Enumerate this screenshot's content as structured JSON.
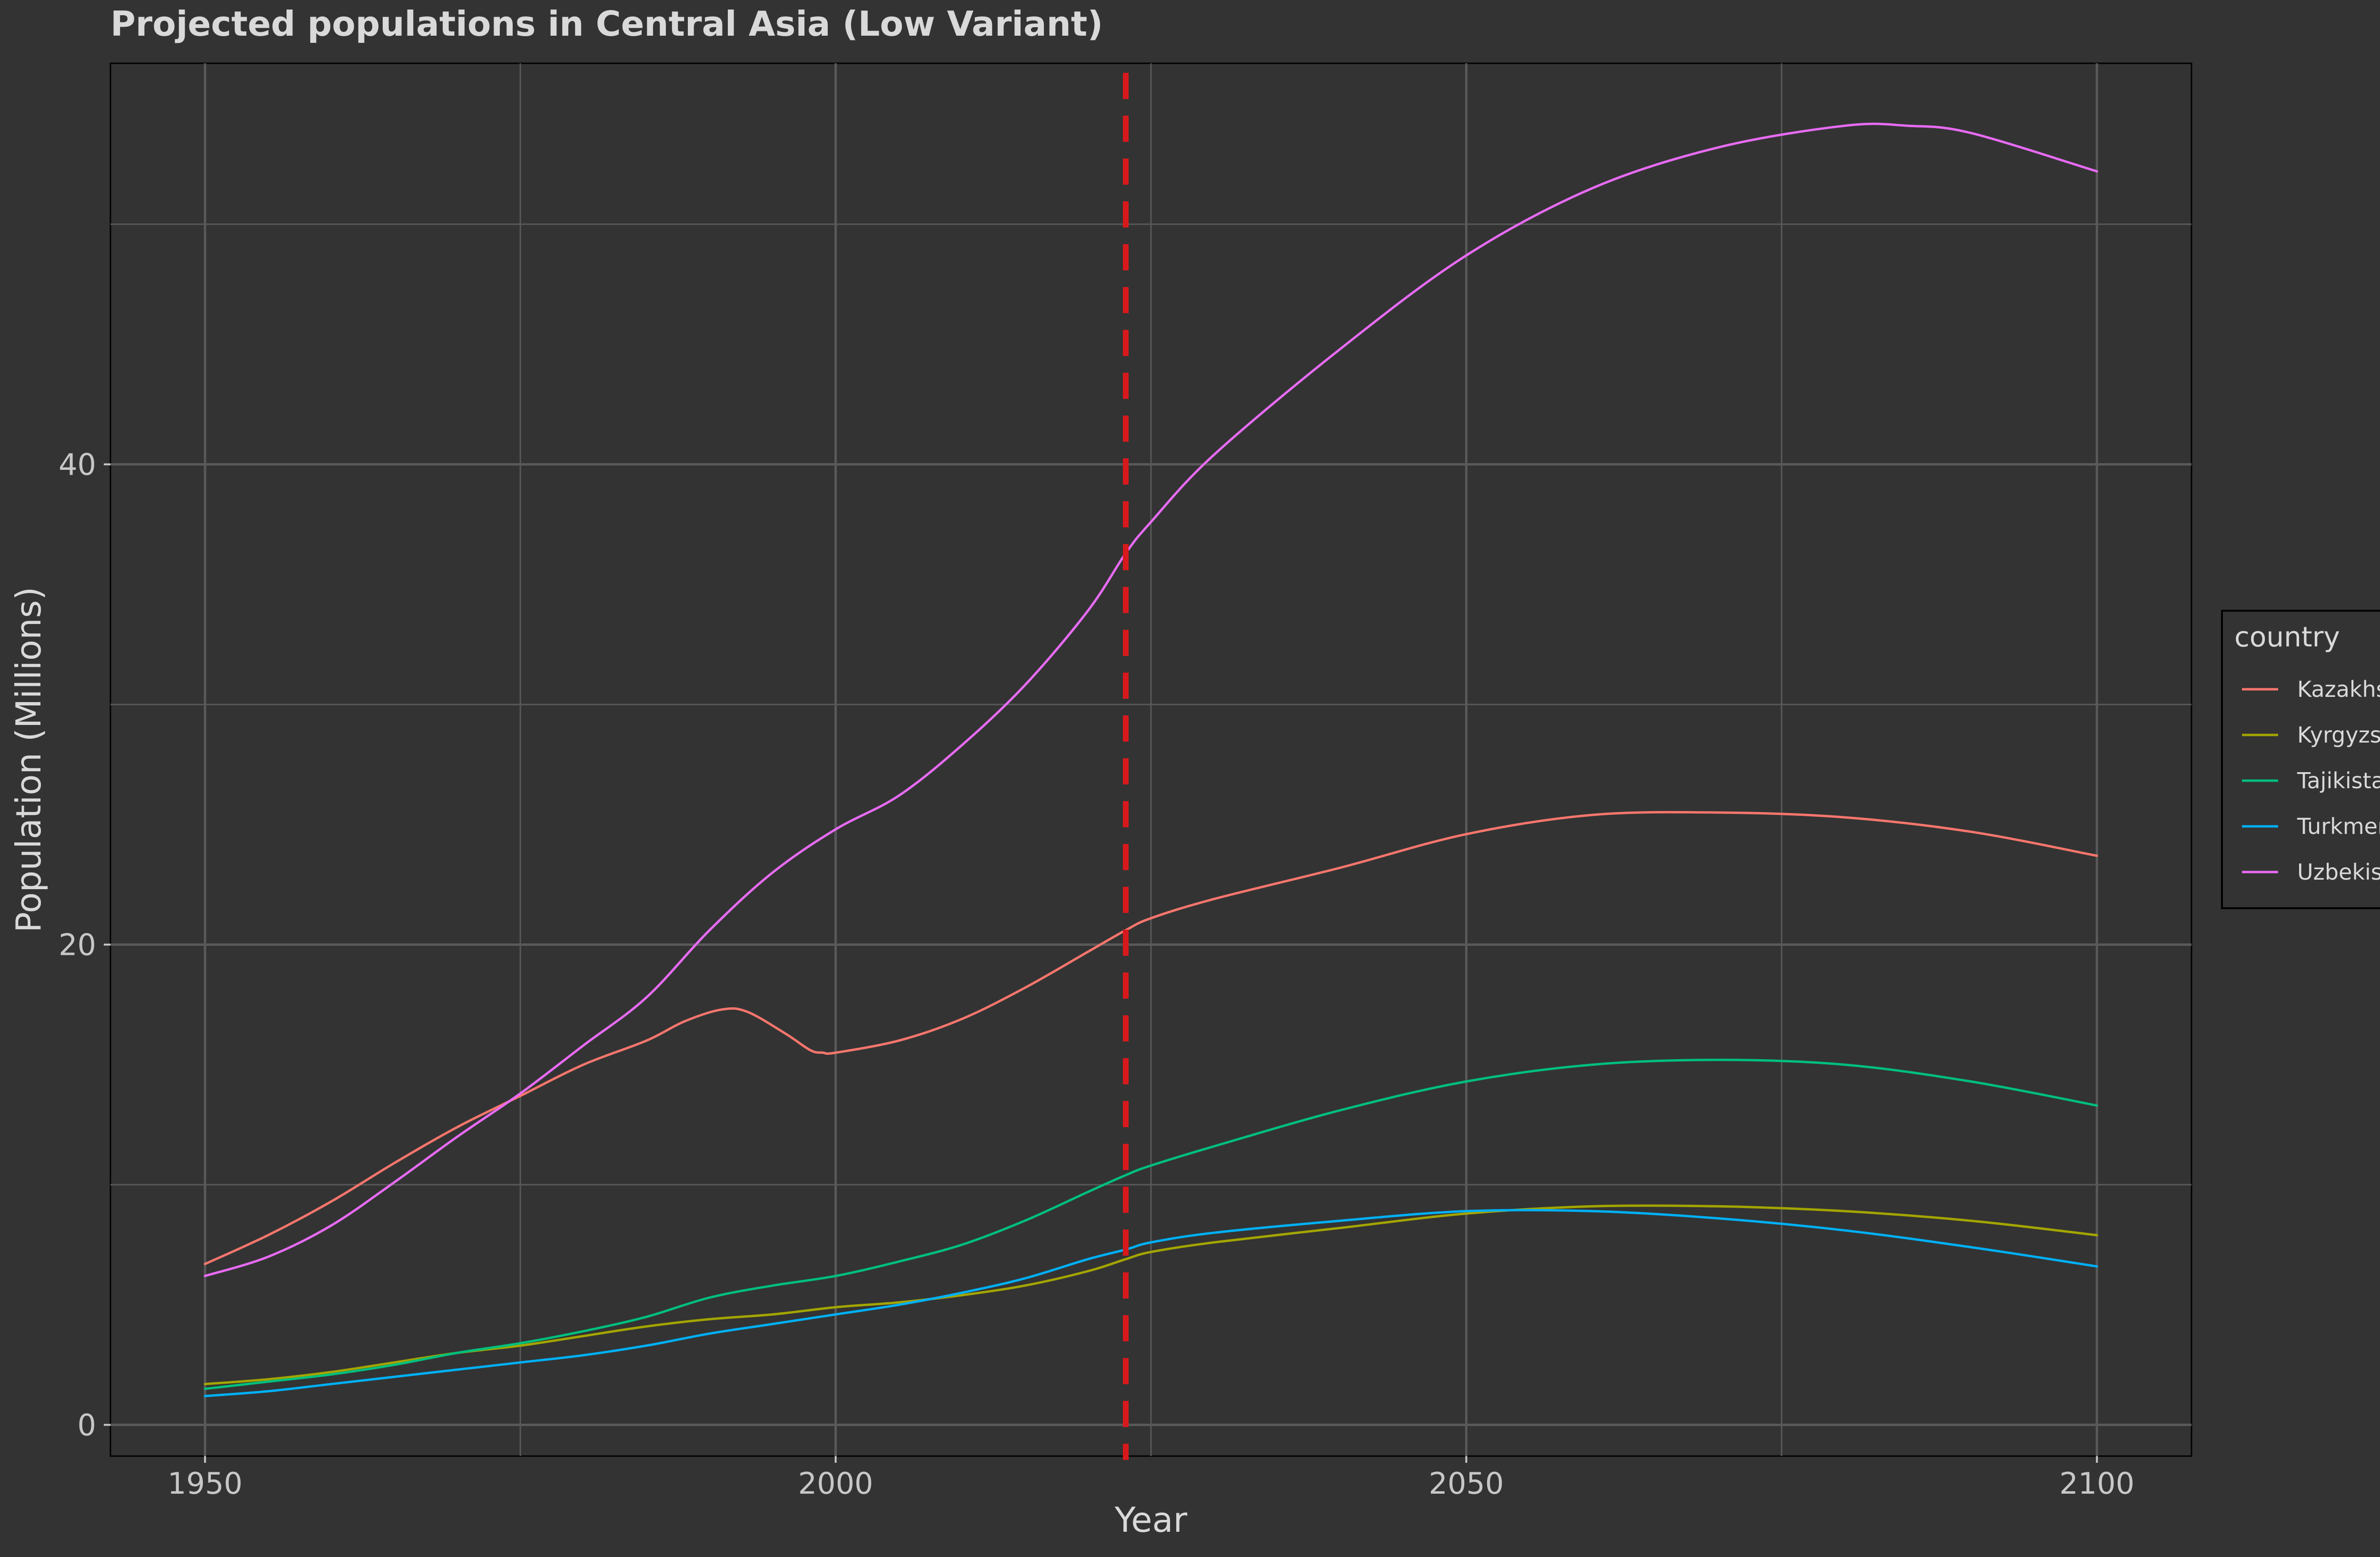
{
  "chart_data": {
    "type": "line",
    "title": "Projected populations in Central Asia (Low Variant)",
    "xlabel": "Year",
    "ylabel": "Population (Millions)",
    "xlim": [
      1942.5,
      2107.5
    ],
    "ylim": [
      -1.3,
      56.7
    ],
    "x_ticks": [
      1950,
      2000,
      2050,
      2100
    ],
    "x_tick_labels": [
      "1950",
      "2000",
      "2050",
      "2100"
    ],
    "y_ticks": [
      0,
      20,
      40
    ],
    "y_tick_labels": [
      "0",
      "20",
      "40"
    ],
    "x_minor_gridlines": [
      1975,
      2025,
      2075
    ],
    "y_minor_gridlines": [
      10,
      30,
      50
    ],
    "grid": true,
    "legend": {
      "title": "country",
      "placement": "right"
    },
    "reference_line": {
      "x": 2023,
      "style": "dashed",
      "color": "#d7191c"
    },
    "colors": {
      "background": "#333333",
      "grid": "#595959",
      "text": "#d9d9d9",
      "axis_text": "#c7c7c7"
    },
    "series": [
      {
        "name": "Kazakhstan",
        "color": "#f8766d",
        "points": [
          [
            1950,
            6.7
          ],
          [
            1955,
            7.9
          ],
          [
            1960,
            9.3
          ],
          [
            1965,
            10.9
          ],
          [
            1970,
            12.4
          ],
          [
            1975,
            13.7
          ],
          [
            1980,
            15
          ],
          [
            1985,
            16.0
          ],
          [
            1988,
            16.8
          ],
          [
            1991,
            17.3
          ],
          [
            1993,
            17.2
          ],
          [
            1996,
            16.3
          ],
          [
            1998,
            15.6
          ],
          [
            1999,
            15.5
          ],
          [
            2000,
            15.5
          ],
          [
            2005,
            16.0
          ],
          [
            2010,
            16.9
          ],
          [
            2015,
            18.2
          ],
          [
            2020,
            19.7
          ],
          [
            2023,
            20.6
          ],
          [
            2025,
            21.1
          ],
          [
            2030,
            21.9
          ],
          [
            2040,
            23.2
          ],
          [
            2050,
            24.6
          ],
          [
            2060,
            25.4
          ],
          [
            2070,
            25.5
          ],
          [
            2080,
            25.3
          ],
          [
            2090,
            24.7
          ],
          [
            2100,
            23.7
          ]
        ]
      },
      {
        "name": "Kyrgyzstan",
        "color": "#a3a500",
        "points": [
          [
            1950,
            1.7
          ],
          [
            1955,
            1.9
          ],
          [
            1960,
            2.2
          ],
          [
            1965,
            2.6
          ],
          [
            1970,
            3.0
          ],
          [
            1975,
            3.3
          ],
          [
            1980,
            3.7
          ],
          [
            1985,
            4.1
          ],
          [
            1990,
            4.4
          ],
          [
            1995,
            4.6
          ],
          [
            2000,
            4.9
          ],
          [
            2005,
            5.1
          ],
          [
            2010,
            5.4
          ],
          [
            2015,
            5.8
          ],
          [
            2020,
            6.4
          ],
          [
            2023,
            6.9
          ],
          [
            2025,
            7.2
          ],
          [
            2030,
            7.6
          ],
          [
            2040,
            8.2
          ],
          [
            2050,
            8.8
          ],
          [
            2060,
            9.1
          ],
          [
            2070,
            9.1
          ],
          [
            2080,
            8.9
          ],
          [
            2090,
            8.5
          ],
          [
            2100,
            7.9
          ]
        ]
      },
      {
        "name": "Tajikistan",
        "color": "#00bf7d",
        "points": [
          [
            1950,
            1.5
          ],
          [
            1955,
            1.8
          ],
          [
            1960,
            2.1
          ],
          [
            1965,
            2.5
          ],
          [
            1970,
            3.0
          ],
          [
            1975,
            3.4
          ],
          [
            1980,
            3.9
          ],
          [
            1985,
            4.5
          ],
          [
            1990,
            5.3
          ],
          [
            1995,
            5.8
          ],
          [
            2000,
            6.2
          ],
          [
            2005,
            6.8
          ],
          [
            2010,
            7.5
          ],
          [
            2015,
            8.5
          ],
          [
            2020,
            9.7
          ],
          [
            2023,
            10.4
          ],
          [
            2025,
            10.8
          ],
          [
            2030,
            11.6
          ],
          [
            2040,
            13.1
          ],
          [
            2050,
            14.3
          ],
          [
            2060,
            15.0
          ],
          [
            2070,
            15.2
          ],
          [
            2080,
            15.0
          ],
          [
            2090,
            14.3
          ],
          [
            2100,
            13.3
          ]
        ]
      },
      {
        "name": "Turkmenistan",
        "color": "#00b0f6",
        "points": [
          [
            1950,
            1.2
          ],
          [
            1955,
            1.4
          ],
          [
            1960,
            1.7
          ],
          [
            1965,
            2.0
          ],
          [
            1970,
            2.3
          ],
          [
            1975,
            2.6
          ],
          [
            1980,
            2.9
          ],
          [
            1985,
            3.3
          ],
          [
            1990,
            3.8
          ],
          [
            1995,
            4.2
          ],
          [
            2000,
            4.6
          ],
          [
            2005,
            5.0
          ],
          [
            2010,
            5.5
          ],
          [
            2015,
            6.1
          ],
          [
            2020,
            6.9
          ],
          [
            2023,
            7.3
          ],
          [
            2025,
            7.6
          ],
          [
            2030,
            8.0
          ],
          [
            2040,
            8.5
          ],
          [
            2050,
            8.9
          ],
          [
            2060,
            8.9
          ],
          [
            2070,
            8.6
          ],
          [
            2080,
            8.1
          ],
          [
            2090,
            7.4
          ],
          [
            2100,
            6.6
          ]
        ]
      },
      {
        "name": "Uzbekistan",
        "color": "#e76bf3",
        "points": [
          [
            1950,
            6.2
          ],
          [
            1955,
            7.0
          ],
          [
            1960,
            8.3
          ],
          [
            1965,
            10.1
          ],
          [
            1970,
            12.0
          ],
          [
            1975,
            13.8
          ],
          [
            1980,
            15.8
          ],
          [
            1985,
            17.8
          ],
          [
            1990,
            20.6
          ],
          [
            1995,
            23.0
          ],
          [
            2000,
            24.8
          ],
          [
            2005,
            26.2
          ],
          [
            2010,
            28.3
          ],
          [
            2015,
            30.8
          ],
          [
            2020,
            33.9
          ],
          [
            2023,
            36.3
          ],
          [
            2025,
            37.6
          ],
          [
            2030,
            40.4
          ],
          [
            2040,
            44.8
          ],
          [
            2050,
            48.7
          ],
          [
            2060,
            51.5
          ],
          [
            2070,
            53.2
          ],
          [
            2080,
            54.1
          ],
          [
            2085,
            54.1
          ],
          [
            2090,
            53.8
          ],
          [
            2100,
            52.2
          ]
        ]
      }
    ]
  }
}
